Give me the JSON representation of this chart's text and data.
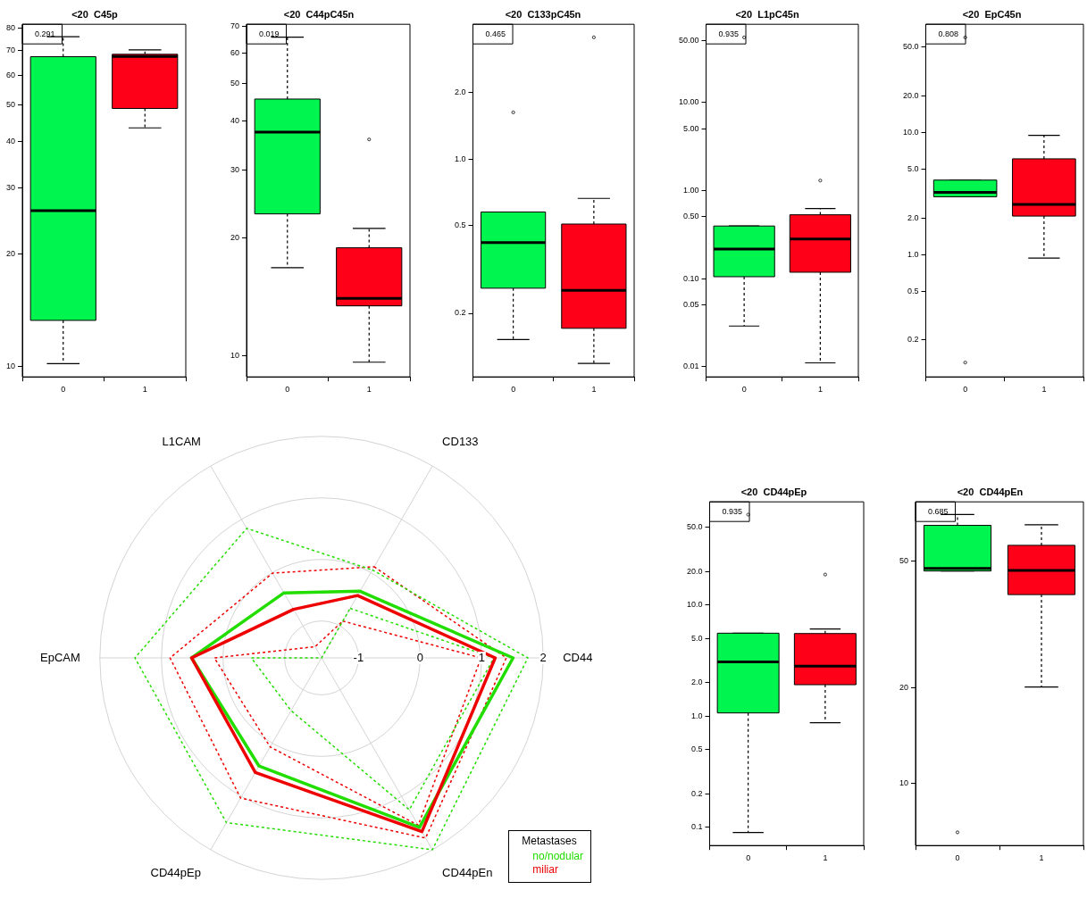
{
  "chart_data": [
    {
      "type": "box",
      "title": "<20  C45p",
      "categories": [
        "0",
        "1"
      ],
      "colors": [
        "#00f54f",
        "#ff0019"
      ],
      "log": true,
      "ylim": [
        9.4,
        82
      ],
      "yticks": [
        10,
        20,
        30,
        40,
        50,
        60,
        70,
        80
      ],
      "annotations": [
        "0.291"
      ],
      "boxes": [
        {
          "low": 10.2,
          "q1": 13.3,
          "median": 26.1,
          "q3": 67.2,
          "high": 76
        },
        {
          "low": 43.4,
          "q1": 48.9,
          "median": 67.3,
          "q3": 68.2,
          "high": 70.1
        }
      ]
    },
    {
      "type": "box",
      "title": "<20  C44pC45n",
      "categories": [
        "0",
        "1"
      ],
      "colors": [
        "#00f54f",
        "#ff0019"
      ],
      "log": true,
      "ylim": [
        8.8,
        71
      ],
      "yticks": [
        10,
        20,
        30,
        40,
        50,
        60,
        70
      ],
      "annotations": [
        "0.019"
      ],
      "boxes": [
        {
          "low": 16.8,
          "q1": 23.1,
          "median": 37.5,
          "q3": 45.6,
          "high": 65.8
        },
        {
          "low": 9.6,
          "q1": 13.4,
          "median": 14.0,
          "q3": 18.9,
          "high": 21.2,
          "outliers": [
            35.9
          ]
        }
      ]
    },
    {
      "type": "box",
      "title": "<20  C133pC45n",
      "categories": [
        "0",
        "1"
      ],
      "colors": [
        "#00f54f",
        "#ff0019"
      ],
      "log": true,
      "ylim": [
        0.103,
        4.09
      ],
      "yticks": [
        0.2,
        0.5,
        {
          "value": 1,
          "label": "1.0"
        },
        {
          "value": 2,
          "label": "2.0"
        }
      ],
      "annotations": [
        "0.465"
      ],
      "boxes": [
        {
          "low": 0.152,
          "q1": 0.26,
          "median": 0.419,
          "q3": 0.576,
          "high": 0.576,
          "outliers": [
            1.63
          ]
        },
        {
          "low": 0.1185,
          "q1": 0.171,
          "median": 0.254,
          "q3": 0.508,
          "high": 0.664,
          "outliers": [
            3.57
          ]
        }
      ]
    },
    {
      "type": "box",
      "title": "<20  L1pC45n",
      "categories": [
        "0",
        "1"
      ],
      "colors": [
        "#00f54f",
        "#ff0019"
      ],
      "log": true,
      "ylim": [
        0.0077,
        76
      ],
      "yticks": [
        {
          "value": 50,
          "label": "50.00"
        },
        {
          "value": 10,
          "label": "10.00"
        },
        {
          "value": 5,
          "label": "5.00"
        },
        {
          "value": 1,
          "label": "1.00"
        },
        {
          "value": 0.5,
          "label": "0.50"
        },
        {
          "value": 0.1,
          "label": "0.10"
        },
        0.05,
        0.01
      ],
      "annotations": [
        "0.935"
      ],
      "boxes": [
        {
          "low": 0.029,
          "q1": 0.105,
          "median": 0.216,
          "q3": 0.394,
          "high": 0.394,
          "outliers": [
            54
          ]
        },
        {
          "low": 0.0111,
          "q1": 0.118,
          "median": 0.281,
          "q3": 0.528,
          "high": 0.622,
          "outliers": [
            1.29
          ]
        }
      ]
    },
    {
      "type": "box",
      "title": "<20  EpC45n",
      "categories": [
        "0",
        "1"
      ],
      "colors": [
        "#00f54f",
        "#ff0019"
      ],
      "log": true,
      "ylim": [
        0.1,
        76.9
      ],
      "yticks": [
        {
          "value": 50,
          "label": "50.0"
        },
        {
          "value": 20,
          "label": "20.0"
        },
        {
          "value": 10,
          "label": "10.0"
        },
        {
          "value": 5,
          "label": "5.0"
        },
        {
          "value": 2,
          "label": "2.0"
        },
        {
          "value": 1,
          "label": "1.0"
        },
        0.5,
        0.2
      ],
      "annotations": [
        "0.808"
      ],
      "boxes": [
        {
          "low": 2.98,
          "q1": 2.98,
          "median": 3.24,
          "q3": 4.08,
          "high": 4.08,
          "outliers": [
            60,
            0.131
          ]
        },
        {
          "low": 0.938,
          "q1": 2.07,
          "median": 2.58,
          "q3": 6.09,
          "high": 9.48
        }
      ]
    },
    {
      "type": "radar",
      "categories": [
        "CD133",
        "CD44",
        "CD44pEn",
        "CD44pEp",
        "EpCAM",
        "L1CAM"
      ],
      "ylim": [
        -1.6,
        2
      ],
      "yticks": [
        -1,
        0,
        1,
        2
      ],
      "grid": true,
      "legend": "bottom right",
      "legend_title": "Metastases",
      "series": [
        {
          "name": "no/nodular",
          "color": "#22dd00",
          "values": [
            -0.35,
            1.51,
            1.58,
            0.43,
            0.51,
            -0.38
          ]
        },
        {
          "name": "miliar",
          "color": "#ee0000",
          "values": [
            -0.43,
            1.22,
            1.66,
            0.55,
            0.51,
            -0.69
          ]
        },
        {
          "color": "#22dd00",
          "line_style": "dotted",
          "values": [
            -0.67,
            1.2,
            1.25,
            -0.61,
            -0.46,
            -1.6
          ]
        },
        {
          "color": "#22dd00",
          "line_style": "dotted",
          "values": [
            0.05,
            1.75,
            2.0,
            1.49,
            1.43,
            0.83
          ]
        },
        {
          "color": "#ee0000",
          "line_style": "dotted",
          "values": [
            -0.91,
            0.99,
            1.54,
            0.07,
            0.14,
            -1.39
          ]
        },
        {
          "color": "#ee0000",
          "line_style": "dotted",
          "values": [
            0.11,
            1.4,
            1.78,
            1.03,
            0.86,
            -0.01
          ]
        }
      ]
    },
    {
      "type": "box",
      "title": "<20  CD44pEp",
      "categories": [
        "0",
        "1"
      ],
      "colors": [
        "#00f54f",
        "#ff0019"
      ],
      "log": true,
      "ylim": [
        0.0687,
        84.7
      ],
      "yticks": [
        {
          "value": 50,
          "label": "50.0"
        },
        {
          "value": 20,
          "label": "20.0"
        },
        {
          "value": 10,
          "label": "10.0"
        },
        {
          "value": 5,
          "label": "5.0"
        },
        {
          "value": 2,
          "label": "2.0"
        },
        {
          "value": 1,
          "label": "1.0"
        },
        0.5,
        0.2,
        0.1
      ],
      "annotations": [
        "0.935"
      ],
      "boxes": [
        {
          "low": 0.09,
          "q1": 1.07,
          "median": 3.08,
          "q3": 5.58,
          "high": 5.58,
          "outliers": [
            65
          ]
        },
        {
          "low": 0.874,
          "q1": 1.92,
          "median": 2.82,
          "q3": 5.54,
          "high": 6.08,
          "outliers": [
            18.8
          ]
        }
      ]
    },
    {
      "type": "box",
      "title": "<20  CD44pEn",
      "categories": [
        "0",
        "1"
      ],
      "colors": [
        "#00f54f",
        "#ff0019"
      ],
      "log": true,
      "ylim": [
        6.38,
        76.7
      ],
      "yticks": [
        10,
        20,
        50
      ],
      "annotations": [
        "0.685"
      ],
      "boxes": [
        {
          "low": 46.5,
          "q1": 46.5,
          "median": 47.4,
          "q3": 64.7,
          "high": 70,
          "outliers": [
            7.02
          ]
        },
        {
          "low": 20.1,
          "q1": 39.2,
          "median": 46.7,
          "q3": 56,
          "high": 65
        }
      ]
    }
  ]
}
